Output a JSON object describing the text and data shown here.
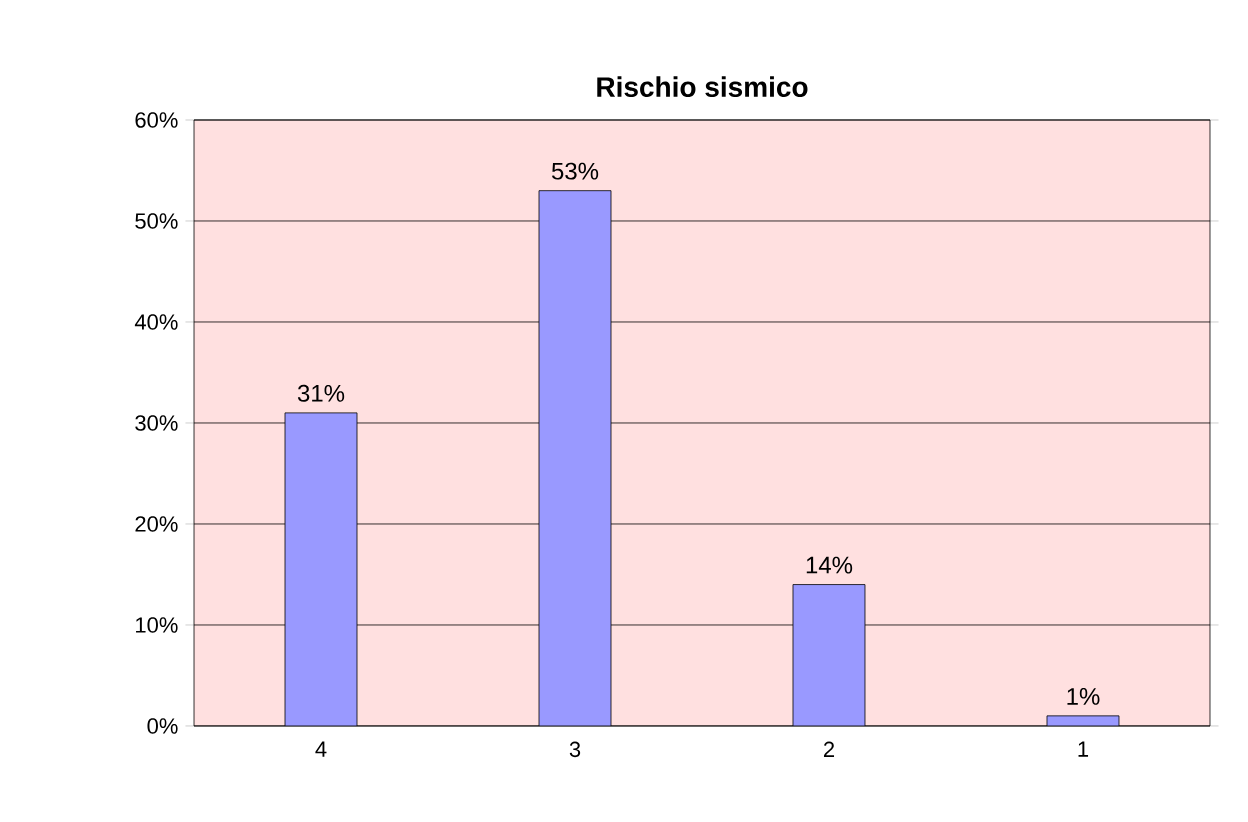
{
  "chart_data": {
    "type": "bar",
    "title": "Rischio sismico",
    "categories": [
      "4",
      "3",
      "2",
      "1"
    ],
    "values": [
      31,
      53,
      14,
      1
    ],
    "value_labels": [
      "31%",
      "53%",
      "14%",
      "1%"
    ],
    "color": "#9999ff",
    "ylim": [
      0,
      60
    ],
    "yticks": [
      {
        "value": 0,
        "label": "0%"
      },
      {
        "value": 10,
        "label": "10%"
      },
      {
        "value": 20,
        "label": "20%"
      },
      {
        "value": 30,
        "label": "30%"
      },
      {
        "value": 40,
        "label": "40%"
      },
      {
        "value": 50,
        "label": "50%"
      },
      {
        "value": 60,
        "label": "60%"
      }
    ],
    "grid": "y"
  }
}
